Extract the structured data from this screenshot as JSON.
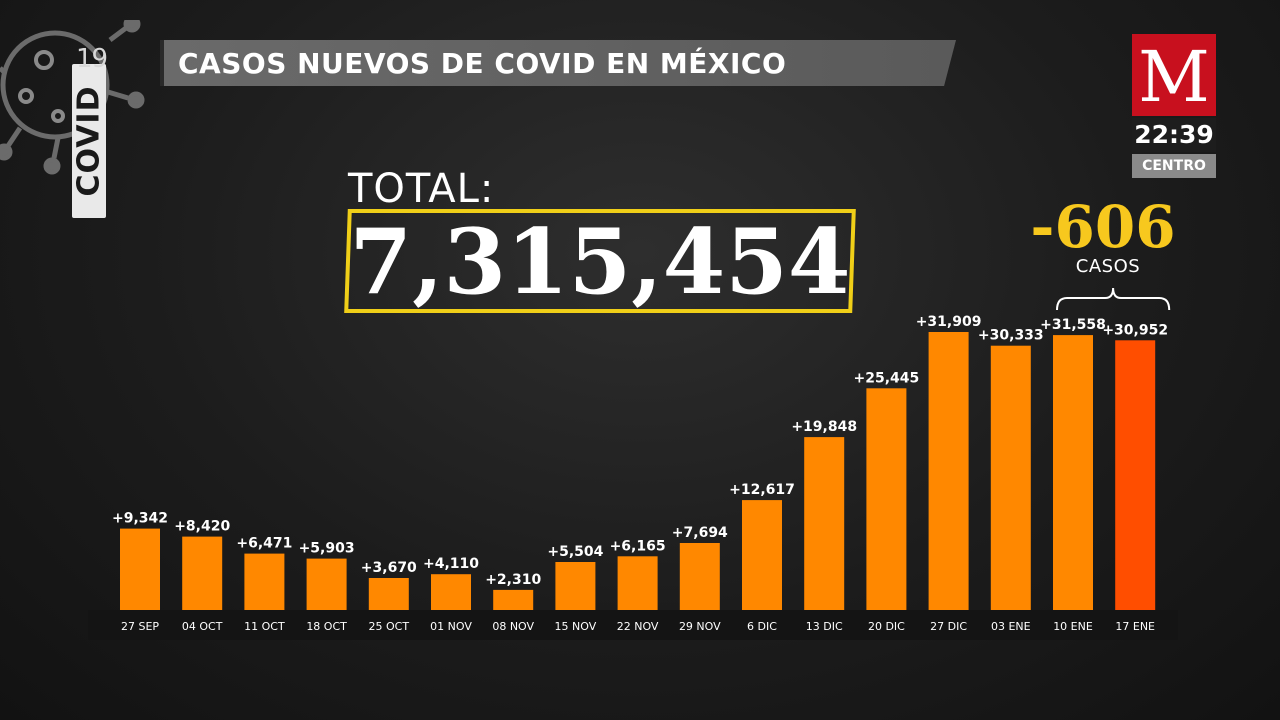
{
  "header": {
    "title": "CASOS NUEVOS DE COVID EN MÉXICO",
    "logo_word": "COVID",
    "logo_number": "19"
  },
  "brand": {
    "letter": "M",
    "time": "22:39",
    "timezone": "CENTRO",
    "color": "#c8101e"
  },
  "total": {
    "label": "TOTAL:",
    "value": "7,315,454",
    "frame_color": "#f0cf18"
  },
  "comparison": {
    "value": "-606",
    "unit": "CASOS",
    "color": "#f7c81e"
  },
  "chart_data": {
    "type": "bar",
    "categories": [
      "27 SEP",
      "04 OCT",
      "11 OCT",
      "18 OCT",
      "25 OCT",
      "01 NOV",
      "08 NOV",
      "15 NOV",
      "22 NOV",
      "29 NOV",
      "6 DIC",
      "13 DIC",
      "20 DIC",
      "27 DIC",
      "03 ENE",
      "10 ENE",
      "17 ENE"
    ],
    "values": [
      9342,
      8420,
      6471,
      5903,
      3670,
      4110,
      2310,
      5504,
      6165,
      7694,
      12617,
      19848,
      25445,
      31909,
      30333,
      31558,
      30952
    ],
    "labels": [
      "+9,342",
      "+8,420",
      "+6,471",
      "+5,903",
      "+3,670",
      "+4,110",
      "+2,310",
      "+5,504",
      "+6,165",
      "+7,694",
      "+12,617",
      "+19,848",
      "+25,445",
      "+31,909",
      "+30,333",
      "+31,558",
      "+30,952"
    ],
    "bar_color": "#ff8800",
    "highlight_color": "#ff4e00",
    "highlight_index": 16,
    "grid": false
  }
}
